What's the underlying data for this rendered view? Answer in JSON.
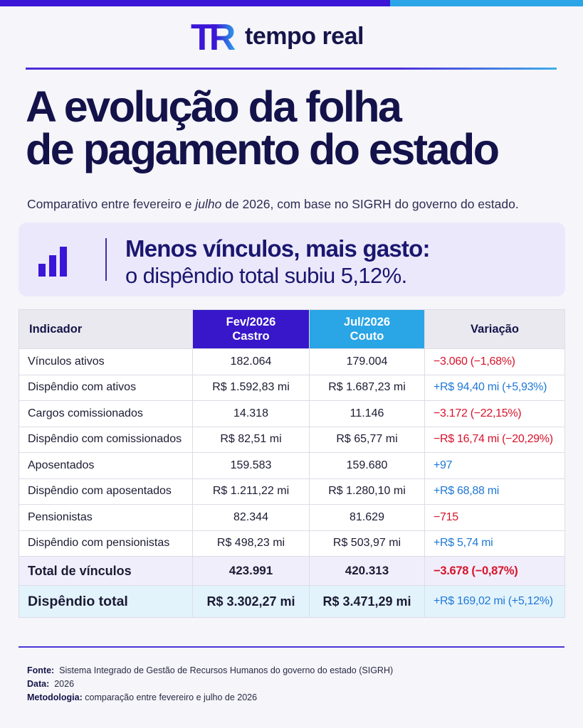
{
  "brand": {
    "logo_letters": "TR",
    "name": "tempo real",
    "colors": {
      "primary": "#3b16d6",
      "secondary": "#2ba5e8",
      "navy": "#14124a"
    }
  },
  "headline": {
    "line1": "A evolução da folha",
    "line2": "de pagamento do estado"
  },
  "subtitle": {
    "before": "Comparativo entre fevereiro e ",
    "emph": "julho",
    "after": " de 2026, com base no SIGRH do governo do estado."
  },
  "callout": {
    "icon": "bar-chart-icon",
    "title": "Menos vínculos, mais gasto:",
    "subtitle": "o dispêndio total subiu 5,12%."
  },
  "table": {
    "headers": {
      "indicator": "Indicador",
      "fev_period": "Fev/2026",
      "fev_name": "Castro",
      "jul_period": "Jul/2026",
      "jul_name": "Couto",
      "variation": "Variação"
    },
    "rows": [
      {
        "label": "Vínculos ativos",
        "fev": "182.064",
        "jul": "179.004",
        "var": "−3.060 (−1,68%)",
        "trend": "neg"
      },
      {
        "label": "Dispêndio com ativos",
        "fev": "R$ 1.592,83 mi",
        "jul": "R$ 1.687,23 mi",
        "var": "+R$ 94,40 mi (+5,93%)",
        "trend": "pos"
      },
      {
        "label": "Cargos comissionados",
        "fev": "14.318",
        "jul": "11.146",
        "var": "−3.172 (−22,15%)",
        "trend": "neg"
      },
      {
        "label": "Dispêndio com comissionados",
        "fev": "R$ 82,51 mi",
        "jul": "R$ 65,77 mi",
        "var": "−R$ 16,74 mi (−20,29%)",
        "trend": "neg"
      },
      {
        "label": "Aposentados",
        "fev": "159.583",
        "jul": "159.680",
        "var": "+97",
        "trend": "pos"
      },
      {
        "label": "Dispêndio com aposentados",
        "fev": "R$ 1.211,22 mi",
        "jul": "R$ 1.280,10 mi",
        "var": "+R$ 68,88 mi",
        "trend": "pos"
      },
      {
        "label": "Pensionistas",
        "fev": "82.344",
        "jul": "81.629",
        "var": "−715",
        "trend": "neg"
      },
      {
        "label": "Dispêndio com pensionistas",
        "fev": "R$ 498,23 mi",
        "jul": "R$ 503,97 mi",
        "var": "+R$ 5,74 mi",
        "trend": "pos"
      }
    ],
    "total_links": {
      "label": "Total de vínculos",
      "fev": "423.991",
      "jul": "420.313",
      "var": "−3.678 (−0,87%)",
      "trend": "neg"
    },
    "total_spend": {
      "label": "Dispêndio total",
      "fev": "R$ 3.302,27 mi",
      "jul": "R$ 3.471,29 mi",
      "var": "+R$ 169,02 mi (+5,12%)",
      "trend": "pos"
    }
  },
  "footer": {
    "source_label": "Fonte:",
    "source": "Sistema Integrado de Gestão de Recursos Humanos do governo do estado (SIGRH)",
    "date_label": "Data:",
    "date": "2026",
    "method_label": "Metodologia:",
    "method": "comparação entre fevereiro e julho de 2026"
  }
}
